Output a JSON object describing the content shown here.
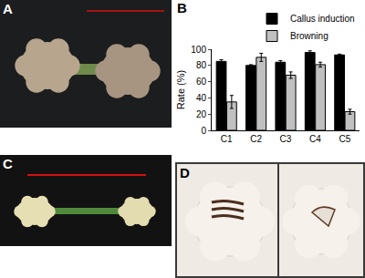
{
  "panels": [
    "A",
    "B",
    "C",
    "D"
  ],
  "chart_data": {
    "type": "bar",
    "categories": [
      "C1",
      "C2",
      "C3",
      "C4",
      "C5"
    ],
    "series": [
      {
        "name": "Callus induction",
        "color": "#000000",
        "values": [
          85,
          80,
          84,
          96,
          93
        ],
        "errors": [
          2,
          1,
          2,
          2,
          1
        ]
      },
      {
        "name": "Browning",
        "color": "#c0c0c0",
        "values": [
          35,
          90,
          68,
          81,
          23
        ],
        "errors": [
          8,
          5,
          4,
          3,
          3
        ]
      }
    ],
    "y_label": "Rate (%)",
    "ylim": [
      0,
      100
    ],
    "yticks": [
      0,
      20,
      40,
      60,
      80,
      100
    ],
    "grid": false,
    "legend": "top right"
  }
}
